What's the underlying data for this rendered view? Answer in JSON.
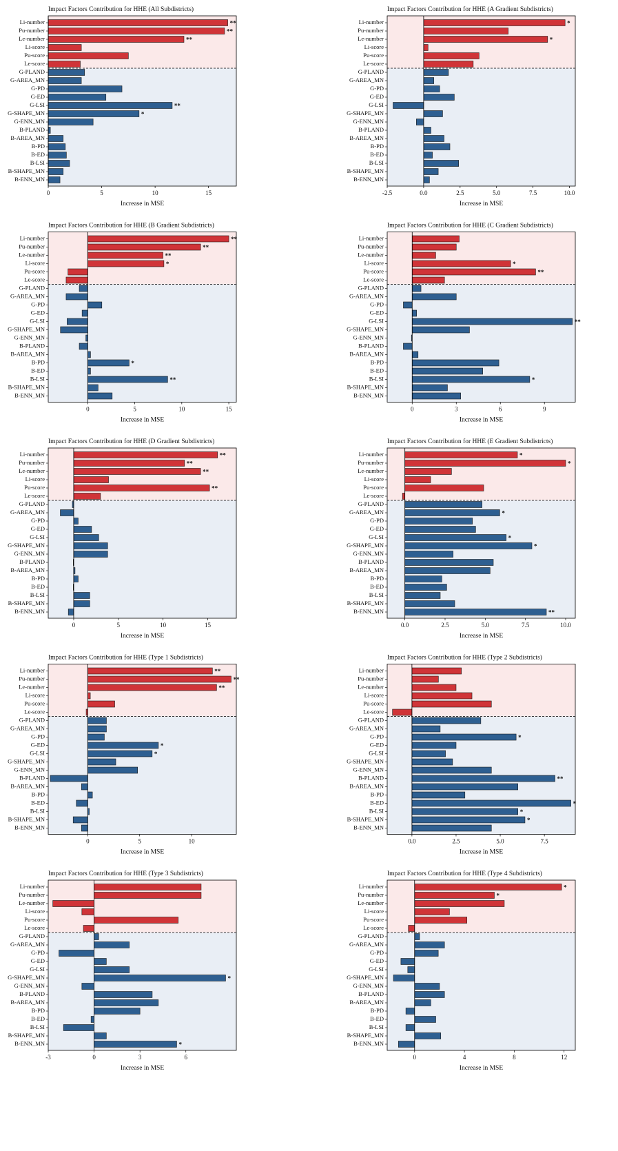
{
  "style": {
    "colors": [
      "#d03438",
      "#2e5f91"
    ],
    "backgrounds": [
      "#fbe9e9",
      "#e9eef5"
    ],
    "group_sizes": [
      6,
      14
    ]
  },
  "chart_data": [
    {
      "type": "barh",
      "title": "Impact Factors Contribution for HHE (All Subdistricts)",
      "x_label": "Increase in MSE",
      "categories": [
        "Li-number",
        "Pu-number",
        "Le-number",
        "Li-score",
        "Pu-score",
        "Le-score",
        "G-PLAND",
        "G-AREA_MN",
        "G-PD",
        "G-ED",
        "G-LSI",
        "G-SHAPE_MN",
        "G-ENN_MN",
        "B-PLAND",
        "B-AREA_MN",
        "B-PD",
        "B-ED",
        "B-LSI",
        "B-SHAPE_MN",
        "B-ENN_MN"
      ],
      "values": [
        16.8,
        16.5,
        12.7,
        3.1,
        7.5,
        3.0,
        3.4,
        3.1,
        6.9,
        5.4,
        11.6,
        8.5,
        4.2,
        0.2,
        1.4,
        1.6,
        1.7,
        2.0,
        1.4,
        1.1
      ],
      "annotations": [
        "**",
        "**",
        "**",
        null,
        null,
        null,
        null,
        null,
        null,
        null,
        "**",
        "*",
        null,
        null,
        null,
        null,
        null,
        null,
        null,
        null
      ],
      "xlim": [
        0,
        17.6
      ],
      "xticks": [
        0,
        5,
        10,
        15
      ]
    },
    {
      "type": "barh",
      "title": "Impact Factors Contribution for HHE (A Gradient Subdistricts)",
      "x_label": "Increase in MSE",
      "categories": [
        "Li-number",
        "Pu-number",
        "Le-number",
        "Li-score",
        "Pu-score",
        "Le-score",
        "G-PLAND",
        "G-AREA_MN",
        "G-PD",
        "G-ED",
        "G-LSI",
        "G-SHAPE_MN",
        "G-ENN_MN",
        "B-PLAND",
        "B-AREA_MN",
        "B-PD",
        "B-ED",
        "B-LSI",
        "B-SHAPE_MN",
        "B-ENN_MN"
      ],
      "values": [
        9.7,
        5.8,
        8.5,
        0.3,
        3.8,
        3.4,
        1.7,
        0.7,
        1.1,
        2.1,
        -2.1,
        1.3,
        -0.5,
        0.5,
        1.4,
        1.8,
        0.6,
        2.4,
        1.0,
        0.4
      ],
      "annotations": [
        "*",
        null,
        "*",
        null,
        null,
        null,
        null,
        null,
        null,
        null,
        null,
        null,
        null,
        null,
        null,
        null,
        null,
        null,
        null,
        null
      ],
      "xlim": [
        -2.5,
        10.4
      ],
      "xticks": [
        -2.5,
        {
          "value": 0,
          "label": "0.0"
        },
        2.5,
        {
          "value": 5,
          "label": "5.0"
        },
        7.5,
        {
          "value": 10,
          "label": "10.0"
        }
      ]
    },
    {
      "type": "barh",
      "title": "Impact Factors Contribution for HHE (B Gradient Subdistricts)",
      "x_label": "Increase in MSE",
      "categories": [
        "Li-number",
        "Pu-number",
        "Le-number",
        "Li-score",
        "Pu-score",
        "Le-score",
        "G-PLAND",
        "G-AREA_MN",
        "G-PD",
        "G-ED",
        "G-LSI",
        "G-SHAPE_MN",
        "G-ENN_MN",
        "B-PLAND",
        "B-AREA_MN",
        "B-PD",
        "B-ED",
        "B-LSI",
        "B-SHAPE_MN",
        "B-ENN_MN"
      ],
      "values": [
        15.0,
        12.0,
        8.0,
        8.1,
        -2.1,
        -2.3,
        -0.9,
        -2.3,
        1.5,
        -0.6,
        -2.2,
        -2.9,
        -0.2,
        -0.9,
        0.3,
        4.4,
        0.3,
        8.5,
        1.1,
        2.6
      ],
      "annotations": [
        "**",
        "**",
        "**",
        "*",
        null,
        null,
        null,
        null,
        null,
        null,
        null,
        null,
        null,
        null,
        null,
        "*",
        null,
        "**",
        null,
        null
      ],
      "xlim": [
        -4.2,
        15.8
      ],
      "xticks": [
        0,
        5,
        10,
        15
      ]
    },
    {
      "type": "barh",
      "title": "Impact Factors Contribution for HHE (C Gradient Subdistricts)",
      "x_label": "Increase in MSE",
      "categories": [
        "Li-number",
        "Pu-number",
        "Le-number",
        "Li-score",
        "Pu-score",
        "Le-score",
        "G-PLAND",
        "G-AREA_MN",
        "G-PD",
        "G-ED",
        "G-LSI",
        "G-SHAPE_MN",
        "G-ENN_MN",
        "B-PLAND",
        "B-AREA_MN",
        "B-PD",
        "B-ED",
        "B-LSI",
        "B-SHAPE_MN",
        "B-ENN_MN"
      ],
      "values": [
        3.2,
        3.0,
        1.6,
        6.7,
        8.4,
        2.2,
        0.6,
        3.0,
        -0.6,
        0.3,
        10.9,
        3.9,
        -0.05,
        -0.6,
        0.4,
        5.9,
        4.8,
        8.0,
        2.4,
        3.3
      ],
      "annotations": [
        null,
        null,
        null,
        "*",
        "**",
        null,
        null,
        null,
        null,
        null,
        "**",
        null,
        null,
        null,
        null,
        null,
        null,
        "*",
        null,
        null
      ],
      "xlim": [
        -1.7,
        11.1
      ],
      "xticks": [
        0,
        3,
        6,
        9
      ]
    },
    {
      "type": "barh",
      "title": "Impact Factors Contribution for HHE (D Gradient Subdistricts)",
      "x_label": "Increase in MSE",
      "categories": [
        "Li-number",
        "Pu-number",
        "Le-number",
        "Li-score",
        "Pu-score",
        "Le-score",
        "G-PLAND",
        "G-AREA_MN",
        "G-PD",
        "G-ED",
        "G-LSI",
        "G-SHAPE_MN",
        "G-ENN_MN",
        "B-PLAND",
        "B-AREA_MN",
        "B-PD",
        "B-ED",
        "B-LSI",
        "B-SHAPE_MN",
        "B-ENN_MN"
      ],
      "values": [
        16.1,
        12.4,
        14.2,
        3.9,
        15.2,
        3.0,
        -0.15,
        -1.5,
        0.5,
        2.0,
        2.8,
        3.8,
        3.8,
        -0.05,
        0.15,
        0.5,
        -0.05,
        1.8,
        1.8,
        -0.6
      ],
      "annotations": [
        "**",
        "**",
        "**",
        null,
        "**",
        null,
        null,
        null,
        null,
        null,
        null,
        null,
        null,
        null,
        null,
        null,
        null,
        null,
        null,
        null
      ],
      "xlim": [
        -2.85,
        18.2
      ],
      "xticks": [
        0,
        5,
        10,
        15
      ]
    },
    {
      "type": "barh",
      "title": "Impact Factors Contribution for HHE (E Gradient Subdistricts)",
      "x_label": "Increase in MSE",
      "categories": [
        "Li-number",
        "Pu-number",
        "Le-number",
        "Li-score",
        "Pu-score",
        "Le-score",
        "G-PLAND",
        "G-AREA_MN",
        "G-PD",
        "G-ED",
        "G-LSI",
        "G-SHAPE_MN",
        "G-ENN_MN",
        "B-PLAND",
        "B-AREA_MN",
        "B-PD",
        "B-ED",
        "B-LSI",
        "B-SHAPE_MN",
        "B-ENN_MN"
      ],
      "values": [
        7.0,
        10.0,
        2.9,
        1.6,
        4.9,
        -0.15,
        4.8,
        5.9,
        4.2,
        4.4,
        6.3,
        7.9,
        3.0,
        5.5,
        5.3,
        2.3,
        2.6,
        2.2,
        3.1,
        8.8
      ],
      "annotations": [
        "*",
        "*",
        null,
        null,
        null,
        null,
        null,
        "*",
        null,
        null,
        "*",
        "*",
        null,
        null,
        null,
        null,
        null,
        null,
        null,
        "**"
      ],
      "xlim": [
        -1.1,
        10.6
      ],
      "xticks": [
        {
          "value": 0,
          "label": "0.0"
        },
        2.5,
        {
          "value": 5,
          "label": "5.0"
        },
        7.5,
        {
          "value": 10,
          "label": "10.0"
        }
      ]
    },
    {
      "type": "barh",
      "title": "Impact Factors Contribution for HHE (Type 1 Subdistricts)",
      "x_label": "Increase in MSE",
      "categories": [
        "Li-number",
        "Pu-number",
        "Le-number",
        "Li-score",
        "Pu-score",
        "Le-score",
        "G-PLAND",
        "G-AREA_MN",
        "G-PD",
        "G-ED",
        "G-LSI",
        "G-SHAPE_MN",
        "G-ENN_MN",
        "B-PLAND",
        "B-AREA_MN",
        "B-PD",
        "B-ED",
        "B-LSI",
        "B-SHAPE_MN",
        "B-ENN_MN"
      ],
      "values": [
        12.0,
        13.8,
        12.4,
        0.25,
        2.6,
        -0.15,
        1.8,
        1.8,
        1.6,
        6.8,
        6.2,
        2.7,
        4.8,
        -3.6,
        -0.6,
        0.45,
        -1.1,
        0.15,
        -1.4,
        -0.6
      ],
      "annotations": [
        "**",
        "**",
        "**",
        null,
        null,
        null,
        null,
        null,
        null,
        "*",
        "*",
        null,
        null,
        null,
        null,
        null,
        null,
        null,
        null,
        null
      ],
      "xlim": [
        -3.8,
        14.3
      ],
      "xticks": [
        0,
        5,
        10
      ]
    },
    {
      "type": "barh",
      "title": "Impact Factors Contribution for HHE (Type 2 Subdistricts)",
      "x_label": "Increase in MSE",
      "categories": [
        "Li-number",
        "Pu-number",
        "Le-number",
        "Li-score",
        "Pu-score",
        "Le-score",
        "G-PLAND",
        "G-AREA_MN",
        "G-PD",
        "G-ED",
        "G-LSI",
        "G-SHAPE_MN",
        "G-ENN_MN",
        "B-PLAND",
        "B-AREA_MN",
        "B-PD",
        "B-ED",
        "B-LSI",
        "B-SHAPE_MN",
        "B-ENN_MN"
      ],
      "values": [
        2.8,
        1.5,
        2.5,
        3.4,
        4.5,
        -1.1,
        3.9,
        1.6,
        5.9,
        2.5,
        1.9,
        2.3,
        4.5,
        8.1,
        6.0,
        3.0,
        9.0,
        6.0,
        6.4,
        4.5
      ],
      "annotations": [
        null,
        null,
        null,
        null,
        null,
        null,
        null,
        null,
        "*",
        null,
        null,
        null,
        null,
        "**",
        null,
        null,
        "*",
        "*",
        "*",
        null
      ],
      "xlim": [
        -1.4,
        9.25
      ],
      "xticks": [
        {
          "value": 0,
          "label": "0.0"
        },
        2.5,
        {
          "value": 5,
          "label": "5.0"
        },
        7.5
      ]
    },
    {
      "type": "barh",
      "title": "Impact Factors Contribution for HHE (Type 3 Subdistricts)",
      "x_label": "Increase in MSE",
      "categories": [
        "Li-number",
        "Pu-number",
        "Le-number",
        "Li-score",
        "Pu-score",
        "Le-score",
        "G-PLAND",
        "G-AREA_MN",
        "G-PD",
        "G-ED",
        "G-LSI",
        "G-SHAPE_MN",
        "G-ENN_MN",
        "B-PLAND",
        "B-AREA_MN",
        "B-PD",
        "B-ED",
        "B-LSI",
        "B-SHAPE_MN",
        "B-ENN_MN"
      ],
      "values": [
        7.0,
        7.0,
        -2.7,
        -0.8,
        5.5,
        -0.7,
        0.3,
        2.3,
        -2.3,
        0.8,
        2.3,
        8.6,
        -0.8,
        3.8,
        4.2,
        3.0,
        -0.2,
        -2.0,
        0.8,
        5.4
      ],
      "annotations": [
        null,
        null,
        null,
        null,
        null,
        null,
        null,
        null,
        null,
        null,
        null,
        "*",
        null,
        null,
        null,
        null,
        null,
        null,
        null,
        "*"
      ],
      "xlim": [
        -3,
        9.3
      ],
      "xticks": [
        -3,
        0,
        3,
        6
      ]
    },
    {
      "type": "barh",
      "title": "Impact Factors Contribution for HHE (Type 4 Subdistricts)",
      "x_label": "Increase in MSE",
      "categories": [
        "Li-number",
        "Pu-number",
        "Le-number",
        "Li-score",
        "Pu-score",
        "Le-score",
        "G-PLAND",
        "G-AREA_MN",
        "G-PD",
        "G-ED",
        "G-LSI",
        "G-SHAPE_MN",
        "G-ENN_MN",
        "B-PLAND",
        "B-AREA_MN",
        "B-PD",
        "B-ED",
        "B-LSI",
        "B-SHAPE_MN",
        "B-ENN_MN"
      ],
      "values": [
        11.8,
        6.4,
        7.2,
        2.8,
        4.2,
        -0.5,
        0.4,
        2.4,
        1.9,
        -1.1,
        -0.55,
        -1.7,
        2.0,
        2.4,
        1.3,
        -0.7,
        1.7,
        -0.7,
        2.1,
        -1.3
      ],
      "annotations": [
        "*",
        "*",
        null,
        null,
        null,
        null,
        null,
        null,
        null,
        null,
        null,
        null,
        null,
        null,
        null,
        null,
        null,
        null,
        null,
        null
      ],
      "xlim": [
        -2.2,
        12.9
      ],
      "xticks": [
        0,
        4,
        8,
        12
      ]
    }
  ]
}
